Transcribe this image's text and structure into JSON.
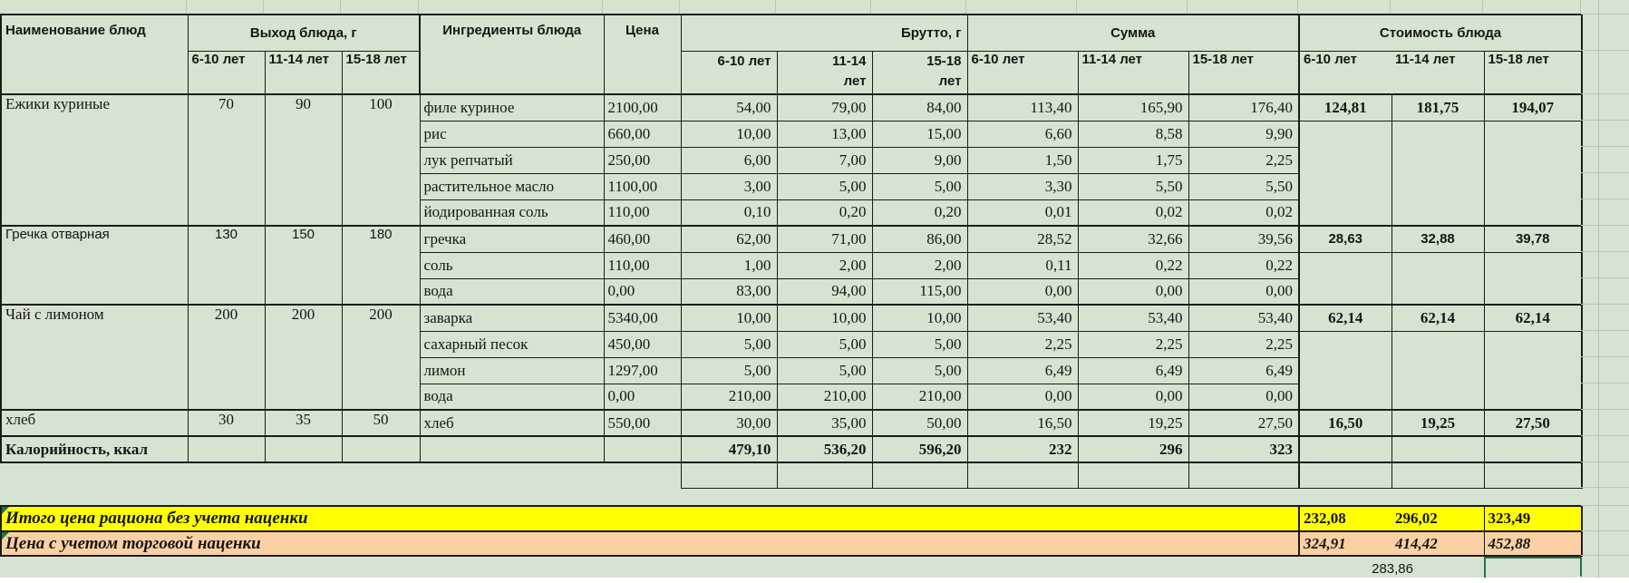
{
  "palette": {
    "page_bg": "#d6e3d0",
    "gridline": "#b7c7b4",
    "border": "#1b1b1b",
    "yellow_row": "#ffff00",
    "orange_row": "#fbd0a4",
    "selection_green": "#217346",
    "white_strip": "#ffffff"
  },
  "header": {
    "col_name": "Наименование блюд",
    "col_output_group": "Выход блюда, г",
    "col_ingredients": "Ингредиенты блюда",
    "col_price": "Цена",
    "col_gross_group": "Брутто, г",
    "col_sum_group": "Сумма",
    "col_cost_group": "Стоимость блюда",
    "age_labels": [
      "6-10 лет",
      "11-14 лет",
      "15-18 лет"
    ],
    "gross_age_labels": [
      "6-10 лет",
      "11-14\nлет",
      "15-18\nлет"
    ]
  },
  "dishes": [
    {
      "name": "Ежики куриные",
      "font": "serif",
      "output": [
        "70",
        "90",
        "100"
      ],
      "cost": [
        "124,81",
        "181,75",
        "194,07"
      ],
      "ingredients": [
        {
          "name": "филе куриное",
          "price": "2100,00",
          "gross": [
            "54,00",
            "79,00",
            "84,00"
          ],
          "sum": [
            "113,40",
            "165,90",
            "176,40"
          ]
        },
        {
          "name": "рис",
          "price": "660,00",
          "gross": [
            "10,00",
            "13,00",
            "15,00"
          ],
          "sum": [
            "6,60",
            "8,58",
            "9,90"
          ]
        },
        {
          "name": "лук репчатый",
          "price": "250,00",
          "gross": [
            "6,00",
            "7,00",
            "9,00"
          ],
          "sum": [
            "1,50",
            "1,75",
            "2,25"
          ]
        },
        {
          "name": "растительное масло",
          "price": "1100,00",
          "gross": [
            "3,00",
            "5,00",
            "5,00"
          ],
          "sum": [
            "3,30",
            "5,50",
            "5,50"
          ]
        },
        {
          "name": "йодированная соль",
          "price": "110,00",
          "gross": [
            "0,10",
            "0,20",
            "0,20"
          ],
          "sum": [
            "0,01",
            "0,02",
            "0,02"
          ]
        }
      ]
    },
    {
      "name": "Гречка отварная",
      "font": "sans",
      "output": [
        "130",
        "150",
        "180"
      ],
      "cost": [
        "28,63",
        "32,88",
        "39,78"
      ],
      "ingredients": [
        {
          "name": "гречка",
          "price": "460,00",
          "gross": [
            "62,00",
            "71,00",
            "86,00"
          ],
          "sum": [
            "28,52",
            "32,66",
            "39,56"
          ]
        },
        {
          "name": "соль",
          "price": "110,00",
          "gross": [
            "1,00",
            "2,00",
            "2,00"
          ],
          "sum": [
            "0,11",
            "0,22",
            "0,22"
          ]
        },
        {
          "name": "вода",
          "price": "0,00",
          "gross": [
            "83,00",
            "94,00",
            "115,00"
          ],
          "sum": [
            "0,00",
            "0,00",
            "0,00"
          ]
        }
      ]
    },
    {
      "name": "Чай с лимоном",
      "font": "serif",
      "output": [
        "200",
        "200",
        "200"
      ],
      "cost": [
        "62,14",
        "62,14",
        "62,14"
      ],
      "ingredients": [
        {
          "name": "заварка",
          "price": "5340,00",
          "gross": [
            "10,00",
            "10,00",
            "10,00"
          ],
          "sum": [
            "53,40",
            "53,40",
            "53,40"
          ]
        },
        {
          "name": "сахарный песок",
          "price": "450,00",
          "gross": [
            "5,00",
            "5,00",
            "5,00"
          ],
          "sum": [
            "2,25",
            "2,25",
            "2,25"
          ]
        },
        {
          "name": "лимон",
          "price": "1297,00",
          "gross": [
            "5,00",
            "5,00",
            "5,00"
          ],
          "sum": [
            "6,49",
            "6,49",
            "6,49"
          ]
        },
        {
          "name": "вода",
          "price": "0,00",
          "gross": [
            "210,00",
            "210,00",
            "210,00"
          ],
          "sum": [
            "0,00",
            "0,00",
            "0,00"
          ]
        }
      ]
    },
    {
      "name": "хлеб",
      "font": "serif",
      "output": [
        "30",
        "35",
        "50"
      ],
      "cost": [
        "16,50",
        "19,25",
        "27,50"
      ],
      "ingredients": [
        {
          "name": "хлеб",
          "price": "550,00",
          "gross": [
            "30,00",
            "35,00",
            "50,00"
          ],
          "sum": [
            "16,50",
            "19,25",
            "27,50"
          ]
        }
      ]
    }
  ],
  "calories_row": {
    "label": "Калорийность, ккал",
    "gross": [
      "479,10",
      "536,20",
      "596,20"
    ],
    "sum": [
      "232",
      "296",
      "323"
    ]
  },
  "totals": {
    "without_markup": {
      "label": "Итого цена рациона без учета наценки",
      "values": [
        "232,08",
        "296,02",
        "323,49"
      ]
    },
    "with_markup": {
      "label": "Цена с учетом торговой наценки",
      "values": [
        "324,91",
        "414,42",
        "452,88"
      ]
    },
    "bottom_value": "283,86"
  }
}
